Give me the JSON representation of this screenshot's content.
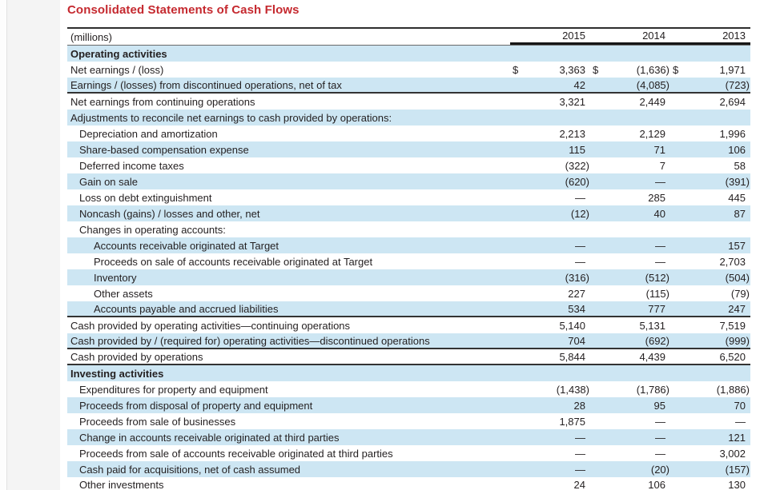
{
  "page": {
    "title": "Consolidated Statements of Cash Flows"
  },
  "colors": {
    "title_red": "#c5292f",
    "row_shade_blue": "#cde6f3"
  },
  "table": {
    "unit_label": "(millions)",
    "currency_symbol": "$",
    "columns": [
      "2015",
      "2014",
      "2013"
    ],
    "rows": [
      {
        "label": "Operating activities",
        "indent": 0,
        "bold": true,
        "shaded": true,
        "values": [
          "",
          "",
          ""
        ]
      },
      {
        "label": "Net earnings / (loss)",
        "indent": 0,
        "dollar": "$",
        "values": [
          "3,363",
          "(1,636)",
          "1,971"
        ]
      },
      {
        "label": "Earnings / (losses) from discontinued operations, net of tax",
        "indent": 0,
        "shaded": true,
        "rule_below": true,
        "values": [
          "42",
          "(4,085)",
          "(723)"
        ]
      },
      {
        "label": "Net earnings from continuing operations",
        "indent": 0,
        "values": [
          "3,321",
          "2,449",
          "2,694"
        ]
      },
      {
        "label": "Adjustments to reconcile net earnings to cash provided by operations:",
        "indent": 0,
        "shaded": true,
        "values": [
          "",
          "",
          ""
        ]
      },
      {
        "label": "Depreciation and amortization",
        "indent": 1,
        "values": [
          "2,213",
          "2,129",
          "1,996"
        ]
      },
      {
        "label": "Share-based compensation expense",
        "indent": 1,
        "shaded": true,
        "values": [
          "115",
          "71",
          "106"
        ]
      },
      {
        "label": "Deferred income taxes",
        "indent": 1,
        "values": [
          "(322)",
          "7",
          "58"
        ]
      },
      {
        "label": "Gain on sale",
        "indent": 1,
        "shaded": true,
        "values": [
          "(620)",
          "—",
          "(391)"
        ]
      },
      {
        "label": "Loss on debt extinguishment",
        "indent": 1,
        "values": [
          "—",
          "285",
          "445"
        ]
      },
      {
        "label": "Noncash (gains) / losses and other, net",
        "indent": 1,
        "shaded": true,
        "values": [
          "(12)",
          "40",
          "87"
        ]
      },
      {
        "label": "Changes in operating accounts:",
        "indent": 1,
        "values": [
          "",
          "",
          ""
        ]
      },
      {
        "label": "Accounts receivable originated at Target",
        "indent": 2,
        "shaded": true,
        "values": [
          "—",
          "—",
          "157"
        ]
      },
      {
        "label": "Proceeds on sale of accounts receivable originated at Target",
        "indent": 2,
        "values": [
          "—",
          "—",
          "2,703"
        ]
      },
      {
        "label": "Inventory",
        "indent": 2,
        "shaded": true,
        "values": [
          "(316)",
          "(512)",
          "(504)"
        ]
      },
      {
        "label": "Other assets",
        "indent": 2,
        "values": [
          "227",
          "(115)",
          "(79)"
        ]
      },
      {
        "label": "Accounts payable and accrued liabilities",
        "indent": 2,
        "shaded": true,
        "rule_below": true,
        "values": [
          "534",
          "777",
          "247"
        ]
      },
      {
        "label": "Cash provided by operating activities—continuing operations",
        "indent": 0,
        "values": [
          "5,140",
          "5,131",
          "7,519"
        ]
      },
      {
        "label": "Cash provided by / (required for) operating activities—discontinued operations",
        "indent": 0,
        "shaded": true,
        "rule_below": true,
        "values": [
          "704",
          "(692)",
          "(999)"
        ]
      },
      {
        "label": "Cash provided by operations",
        "indent": 0,
        "rule_below": true,
        "values": [
          "5,844",
          "4,439",
          "6,520"
        ]
      },
      {
        "label": "Investing activities",
        "indent": 0,
        "bold": true,
        "shaded": true,
        "values": [
          "",
          "",
          ""
        ]
      },
      {
        "label": "Expenditures for property and equipment",
        "indent": 1,
        "values": [
          "(1,438)",
          "(1,786)",
          "(1,886)"
        ]
      },
      {
        "label": "Proceeds from disposal of property and equipment",
        "indent": 1,
        "shaded": true,
        "values": [
          "28",
          "95",
          "70"
        ]
      },
      {
        "label": "Proceeds from sale of businesses",
        "indent": 1,
        "values": [
          "1,875",
          "—",
          "—"
        ]
      },
      {
        "label": "Change in accounts receivable originated at third parties",
        "indent": 1,
        "shaded": true,
        "values": [
          "—",
          "—",
          "121"
        ]
      },
      {
        "label": "Proceeds from sale of accounts receivable originated at third parties",
        "indent": 1,
        "values": [
          "—",
          "—",
          "3,002"
        ]
      },
      {
        "label": "Cash paid for acquisitions, net of cash assumed",
        "indent": 1,
        "shaded": true,
        "values": [
          "—",
          "(20)",
          "(157)"
        ]
      },
      {
        "label": "Other investments",
        "indent": 1,
        "rule_below": true,
        "values": [
          "24",
          "106",
          "130"
        ]
      }
    ]
  }
}
